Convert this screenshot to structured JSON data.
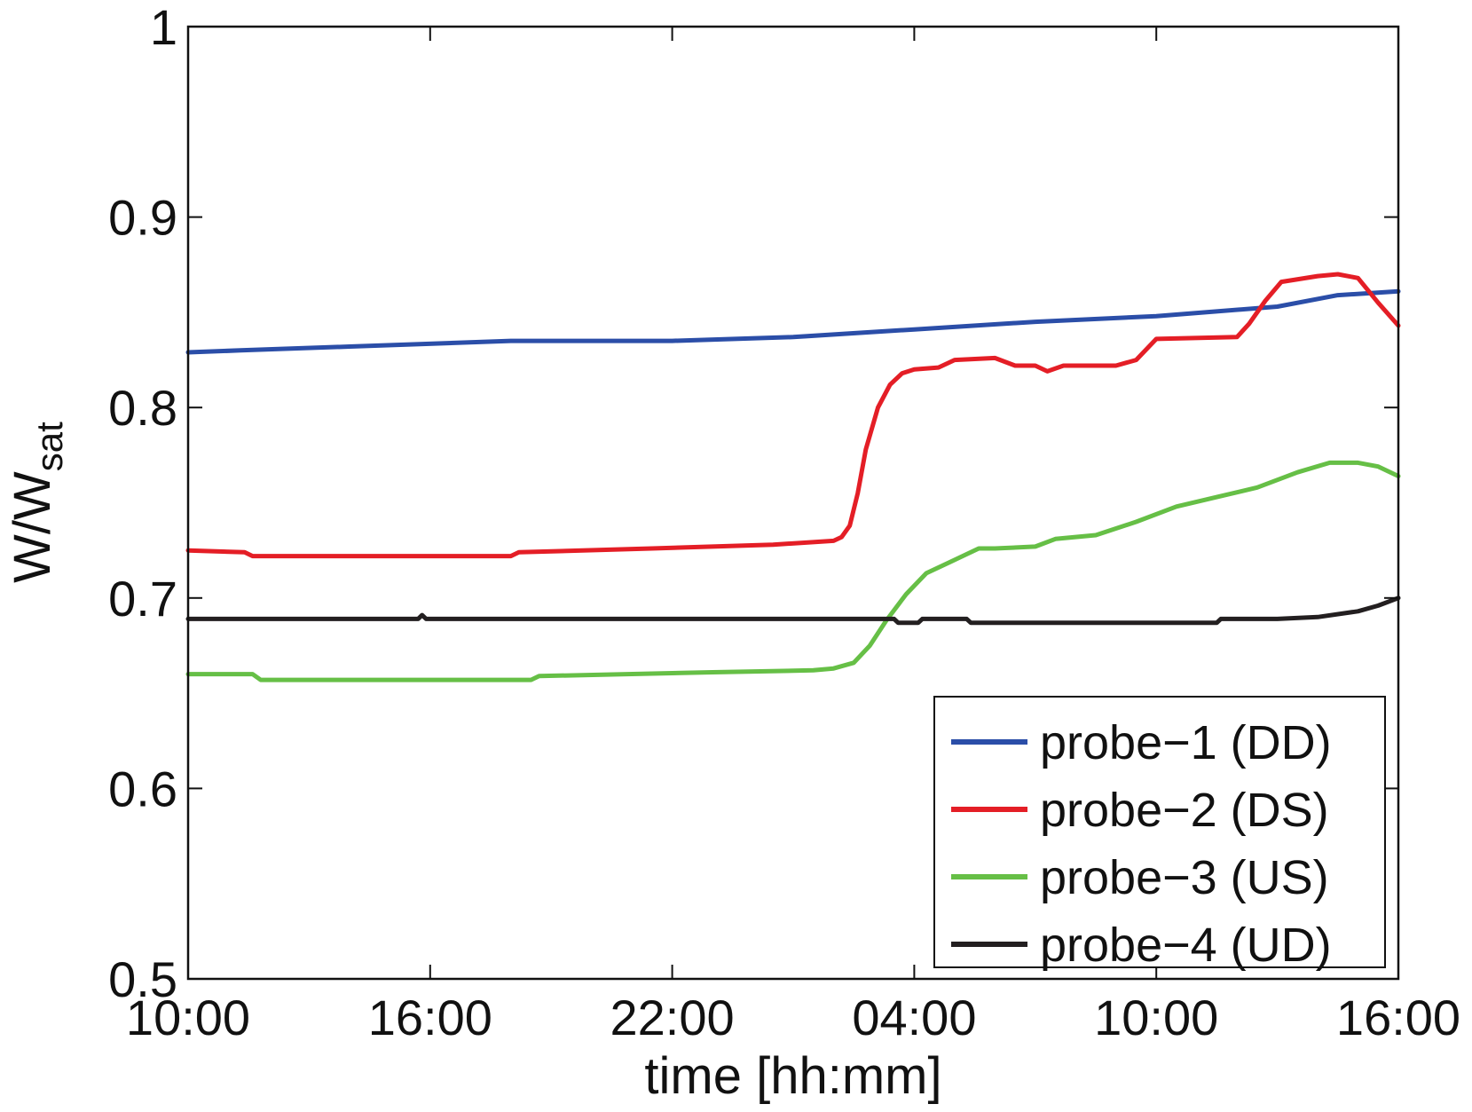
{
  "chart_data": {
    "type": "line",
    "xlabel": "time [hh:mm]",
    "ylabel": {
      "main": "W/W",
      "subscript": "sat"
    },
    "x_unit": "hours from first tick",
    "x_ticks": [
      {
        "x": 0,
        "label": "10:00"
      },
      {
        "x": 6,
        "label": "16:00"
      },
      {
        "x": 12,
        "label": "22:00"
      },
      {
        "x": 18,
        "label": "04:00"
      },
      {
        "x": 24,
        "label": "10:00"
      },
      {
        "x": 30,
        "label": "16:00"
      }
    ],
    "xlim": [
      0,
      30
    ],
    "ylim": [
      0.5,
      1.0
    ],
    "y_ticks": [
      {
        "y": 0.5,
        "label": "0.5"
      },
      {
        "y": 0.6,
        "label": "0.6"
      },
      {
        "y": 0.7,
        "label": "0.7"
      },
      {
        "y": 0.8,
        "label": "0.8"
      },
      {
        "y": 0.9,
        "label": "0.9"
      },
      {
        "y": 1.0,
        "label": "1"
      }
    ],
    "grid": false,
    "legend_position": "bottom-right",
    "series": [
      {
        "name": "probe−1 (DD)",
        "color": "#2b4ea8",
        "points": [
          [
            0,
            0.829
          ],
          [
            1.3,
            0.83
          ],
          [
            4,
            0.832
          ],
          [
            8,
            0.835
          ],
          [
            12,
            0.835
          ],
          [
            15,
            0.837
          ],
          [
            18,
            0.841
          ],
          [
            21,
            0.845
          ],
          [
            24,
            0.848
          ],
          [
            27,
            0.853
          ],
          [
            28.5,
            0.859
          ],
          [
            30,
            0.861
          ]
        ]
      },
      {
        "name": "probe−2 (DS)",
        "color": "#e41e26",
        "points": [
          [
            0,
            0.725
          ],
          [
            1.4,
            0.724
          ],
          [
            1.6,
            0.722
          ],
          [
            8,
            0.722
          ],
          [
            8.2,
            0.724
          ],
          [
            11.5,
            0.726
          ],
          [
            14.5,
            0.728
          ],
          [
            16,
            0.73
          ],
          [
            16.2,
            0.732
          ],
          [
            16.4,
            0.738
          ],
          [
            16.6,
            0.755
          ],
          [
            16.8,
            0.778
          ],
          [
            17.1,
            0.8
          ],
          [
            17.4,
            0.812
          ],
          [
            17.7,
            0.818
          ],
          [
            18.0,
            0.82
          ],
          [
            18.6,
            0.821
          ],
          [
            19.0,
            0.825
          ],
          [
            20.0,
            0.826
          ],
          [
            20.5,
            0.822
          ],
          [
            21.0,
            0.822
          ],
          [
            21.3,
            0.819
          ],
          [
            21.7,
            0.822
          ],
          [
            23.0,
            0.822
          ],
          [
            23.5,
            0.825
          ],
          [
            24.0,
            0.836
          ],
          [
            26.0,
            0.837
          ],
          [
            26.3,
            0.844
          ],
          [
            26.7,
            0.856
          ],
          [
            27.1,
            0.866
          ],
          [
            28.0,
            0.869
          ],
          [
            28.5,
            0.87
          ],
          [
            29.0,
            0.868
          ],
          [
            29.5,
            0.855
          ],
          [
            30.0,
            0.843
          ]
        ]
      },
      {
        "name": "probe−3 (US)",
        "color": "#66bf46",
        "points": [
          [
            0,
            0.66
          ],
          [
            1.6,
            0.66
          ],
          [
            1.8,
            0.657
          ],
          [
            8.5,
            0.657
          ],
          [
            8.7,
            0.659
          ],
          [
            13.0,
            0.661
          ],
          [
            15.5,
            0.662
          ],
          [
            16.0,
            0.663
          ],
          [
            16.5,
            0.666
          ],
          [
            16.9,
            0.675
          ],
          [
            17.3,
            0.688
          ],
          [
            17.8,
            0.702
          ],
          [
            18.3,
            0.713
          ],
          [
            19.0,
            0.72
          ],
          [
            19.6,
            0.726
          ],
          [
            20.0,
            0.726
          ],
          [
            21.0,
            0.727
          ],
          [
            21.5,
            0.731
          ],
          [
            22.5,
            0.733
          ],
          [
            23.5,
            0.74
          ],
          [
            24.5,
            0.748
          ],
          [
            25.5,
            0.753
          ],
          [
            26.5,
            0.758
          ],
          [
            27.5,
            0.766
          ],
          [
            28.3,
            0.771
          ],
          [
            29.0,
            0.771
          ],
          [
            29.5,
            0.769
          ],
          [
            30.0,
            0.764
          ]
        ]
      },
      {
        "name": "probe−4 (UD)",
        "color": "#231f20",
        "points": [
          [
            0,
            0.689
          ],
          [
            5.7,
            0.689
          ],
          [
            5.8,
            0.691
          ],
          [
            5.9,
            0.689
          ],
          [
            17.5,
            0.689
          ],
          [
            17.6,
            0.687
          ],
          [
            18.1,
            0.687
          ],
          [
            18.2,
            0.689
          ],
          [
            19.3,
            0.689
          ],
          [
            19.4,
            0.687
          ],
          [
            24.0,
            0.687
          ],
          [
            25.5,
            0.687
          ],
          [
            25.6,
            0.689
          ],
          [
            27.0,
            0.689
          ],
          [
            28.0,
            0.69
          ],
          [
            29.0,
            0.693
          ],
          [
            29.5,
            0.696
          ],
          [
            30.0,
            0.7
          ]
        ]
      }
    ]
  }
}
